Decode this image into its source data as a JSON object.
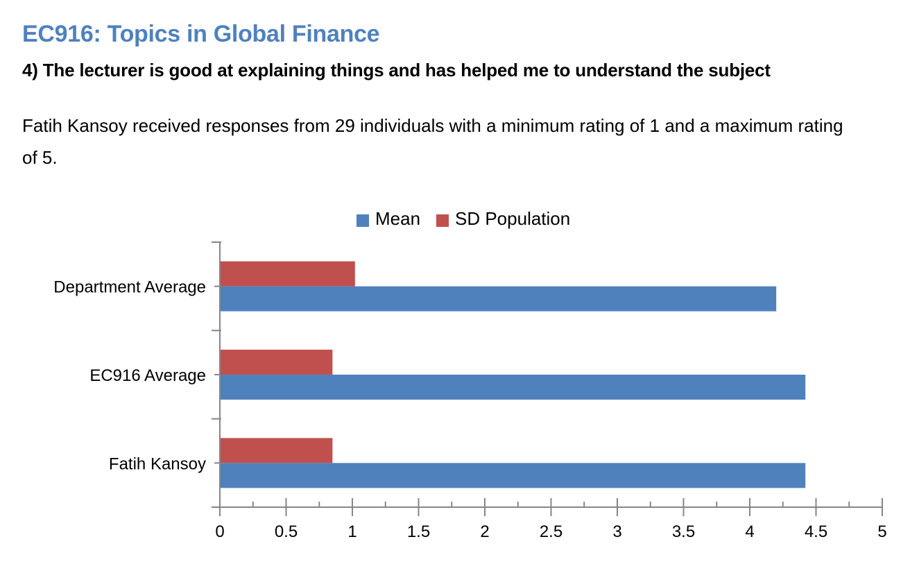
{
  "course_title": "EC916: Topics in Global Finance",
  "question": "4) The lecturer is good at explaining things and has helped me to understand the subject",
  "summary": "Fatih Kansoy received responses from 29 individuals with a minimum rating of 1 and a maximum rating of 5.",
  "chart_data": {
    "type": "bar",
    "orientation": "horizontal",
    "categories": [
      "Department Average",
      "EC916 Average",
      "Fatih Kansoy"
    ],
    "series": [
      {
        "name": "Mean",
        "color": "#4f81bd",
        "values": [
          4.2,
          4.42,
          4.42
        ]
      },
      {
        "name": "SD Population",
        "color": "#c0504d",
        "values": [
          1.02,
          0.85,
          0.85
        ]
      }
    ],
    "xlim": [
      0,
      5
    ],
    "xticks": [
      "0",
      "0.5",
      "1",
      "1.5",
      "2",
      "2.5",
      "3",
      "3.5",
      "4",
      "4.5",
      "5"
    ],
    "legend_position": "top",
    "grid": false
  }
}
